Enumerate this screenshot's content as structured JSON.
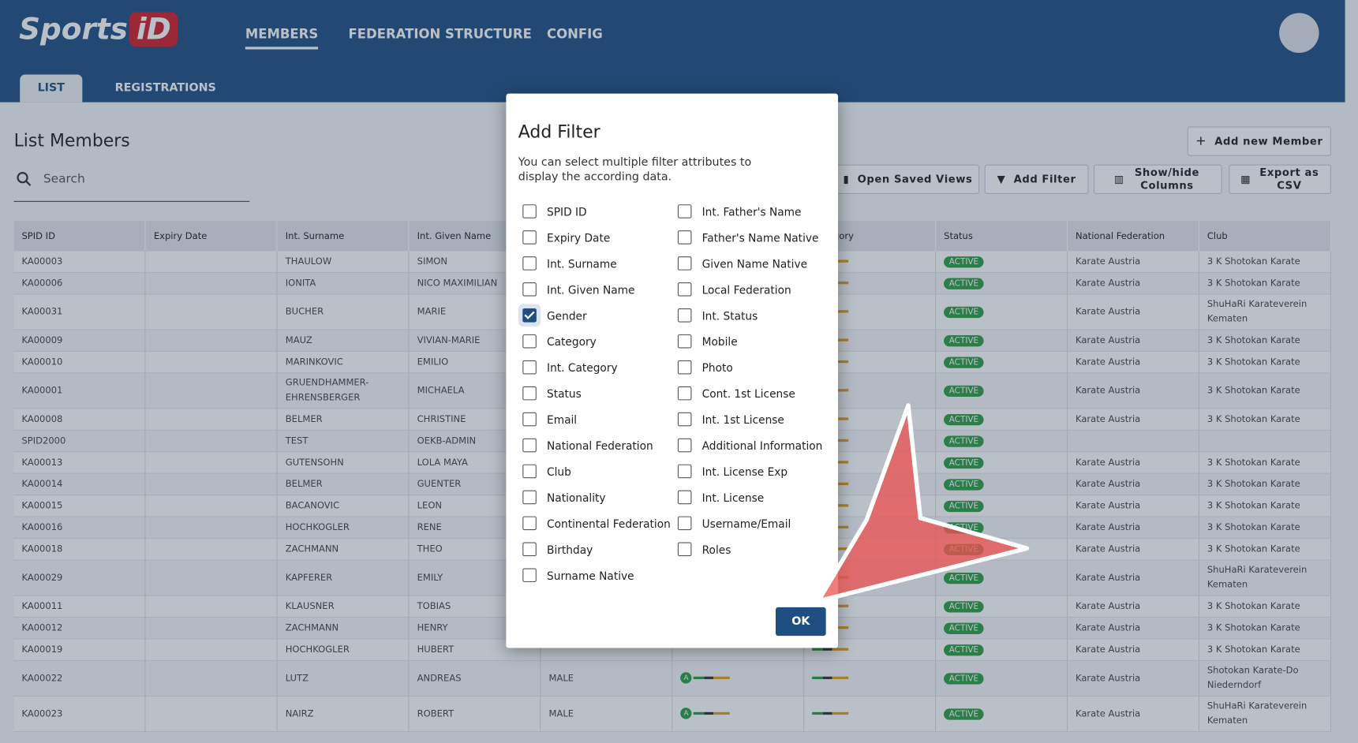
{
  "header": {
    "logo": "Sports",
    "logo_mark": "iD",
    "nav": [
      "MEMBERS",
      "FEDERATION STRUCTURE",
      "CONFIG"
    ],
    "tabs": [
      "LIST",
      "REGISTRATIONS"
    ]
  },
  "page": {
    "title": "List Members",
    "search_placeholder": "Search",
    "buttons": [
      "Add new Member",
      "Open Saved Views",
      "Add Filter",
      "Show/hide Columns",
      "Export as CSV"
    ]
  },
  "table": {
    "columns": [
      "SPID ID",
      "Expiry Date",
      "Int. Surname",
      "Int. Given Name",
      null,
      null,
      "Category",
      "Status",
      "National Federation",
      "Club"
    ],
    "rows": [
      [
        "KA00003",
        null,
        "THAULOW",
        "SIMON",
        null,
        null,
        null,
        "ACTIVE",
        "Karate Austria",
        "3 K Shotokan Karate"
      ],
      [
        "KA00006",
        null,
        "IONITA",
        "NICO MAXIMILIAN",
        null,
        null,
        null,
        "ACTIVE",
        "Karate Austria",
        "3 K Shotokan Karate"
      ],
      [
        "KA00031",
        null,
        "BUCHER",
        "MARIE",
        null,
        null,
        null,
        "ACTIVE",
        "Karate Austria",
        "ShuHaRi Karateverein Kematen"
      ],
      [
        "KA00009",
        null,
        "MAUZ",
        "VIVIAN-MARIE",
        null,
        null,
        null,
        "ACTIVE",
        "Karate Austria",
        "3 K Shotokan Karate"
      ],
      [
        "KA00010",
        null,
        "MARINKOVIC",
        "EMILIO",
        null,
        null,
        null,
        "ACTIVE",
        "Karate Austria",
        "3 K Shotokan Karate"
      ],
      [
        "KA00001",
        null,
        "GRUENDHAMMER-EHRENSBERGER",
        "MICHAELA",
        null,
        null,
        null,
        "ACTIVE",
        "Karate Austria",
        "3 K Shotokan Karate"
      ],
      [
        "KA00008",
        null,
        "BELMER",
        "CHRISTINE",
        null,
        null,
        null,
        "ACTIVE",
        "Karate Austria",
        "3 K Shotokan Karate"
      ],
      [
        "SPID2000",
        null,
        "TEST",
        "OEKB-ADMIN",
        null,
        null,
        null,
        "ACTIVE",
        null,
        null
      ],
      [
        "KA00013",
        null,
        "GUTENSOHN",
        "LOLA MAYA",
        null,
        null,
        null,
        "ACTIVE",
        "Karate Austria",
        "3 K Shotokan Karate"
      ],
      [
        "KA00014",
        null,
        "BELMER",
        "GUENTER",
        null,
        null,
        null,
        "ACTIVE",
        "Karate Austria",
        "3 K Shotokan Karate"
      ],
      [
        "KA00015",
        null,
        "BACANOVIC",
        "LEON",
        null,
        null,
        null,
        "ACTIVE",
        "Karate Austria",
        "3 K Shotokan Karate"
      ],
      [
        "KA00016",
        null,
        "HOCHKOGLER",
        "RENE",
        null,
        null,
        null,
        "ACTIVE",
        "Karate Austria",
        "3 K Shotokan Karate"
      ],
      [
        "KA00018",
        null,
        "ZACHMANN",
        "THEO",
        null,
        null,
        null,
        "ACTIVE",
        "Karate Austria",
        "3 K Shotokan Karate"
      ],
      [
        "KA00029",
        null,
        "KAPFERER",
        "EMILY",
        null,
        null,
        null,
        "ACTIVE",
        "Karate Austria",
        "ShuHaRi Karateverein Kematen"
      ],
      [
        "KA00011",
        null,
        "KLAUSNER",
        "TOBIAS",
        null,
        null,
        null,
        "ACTIVE",
        "Karate Austria",
        "3 K Shotokan Karate"
      ],
      [
        "KA00012",
        null,
        "ZACHMANN",
        "HENRY",
        null,
        null,
        null,
        "ACTIVE",
        "Karate Austria",
        "3 K Shotokan Karate"
      ],
      [
        "KA00019",
        null,
        "HOCHKOGLER",
        "HUBERT",
        null,
        null,
        null,
        "ACTIVE",
        "Karate Austria",
        "3 K Shotokan Karate"
      ],
      [
        "KA00022",
        null,
        "LUTZ",
        "ANDREAS",
        "MALE",
        "A",
        null,
        "ACTIVE",
        "Karate Austria",
        "Shotokan Karate-Do Niederndorf"
      ],
      [
        "KA00023",
        null,
        "NAIRZ",
        "ROBERT",
        "MALE",
        "A",
        null,
        "ACTIVE",
        "Karate Austria",
        "ShuHaRi Karateverein Kematen"
      ]
    ]
  },
  "dialog": {
    "title": "Add Filter",
    "description": "You can select multiple filter attributes to display the according data.",
    "ok": "OK",
    "filters": [
      {
        "label": "SPID ID",
        "checked": false
      },
      {
        "label": "Expiry Date",
        "checked": false
      },
      {
        "label": "Int. Surname",
        "checked": false
      },
      {
        "label": "Int. Given Name",
        "checked": false
      },
      {
        "label": "Gender",
        "checked": true
      },
      {
        "label": "Category",
        "checked": false
      },
      {
        "label": "Int. Category",
        "checked": false
      },
      {
        "label": "Status",
        "checked": false
      },
      {
        "label": "Email",
        "checked": false
      },
      {
        "label": "National Federation",
        "checked": false
      },
      {
        "label": "Club",
        "checked": false
      },
      {
        "label": "Nationality",
        "checked": false
      },
      {
        "label": "Continental Federation",
        "checked": false
      },
      {
        "label": "Birthday",
        "checked": false
      },
      {
        "label": "Surname Native",
        "checked": false
      },
      {
        "label": "Int. Father's Name",
        "checked": false
      },
      {
        "label": "Father's Name Native",
        "checked": false
      },
      {
        "label": "Given Name Native",
        "checked": false
      },
      {
        "label": "Local Federation",
        "checked": false
      },
      {
        "label": "Int. Status",
        "checked": false
      },
      {
        "label": "Mobile",
        "checked": false
      },
      {
        "label": "Photo",
        "checked": false
      },
      {
        "label": "Cont. 1st License",
        "checked": false
      },
      {
        "label": "Int. 1st License",
        "checked": false
      },
      {
        "label": "Additional Information",
        "checked": false
      },
      {
        "label": "Int. License Exp",
        "checked": false
      },
      {
        "label": "Int. License",
        "checked": false
      },
      {
        "label": "Username/Email",
        "checked": false
      },
      {
        "label": "Roles",
        "checked": false
      }
    ]
  }
}
